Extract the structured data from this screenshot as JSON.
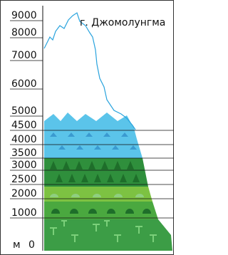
{
  "peak_label": "г. Джомолунгма",
  "unit": "м",
  "altitudes": [
    "0",
    "1000",
    "2000",
    "2500",
    "3000",
    "3500",
    "4000",
    "4500",
    "5000",
    "6000",
    "7000",
    "8000",
    "9000"
  ]
}
